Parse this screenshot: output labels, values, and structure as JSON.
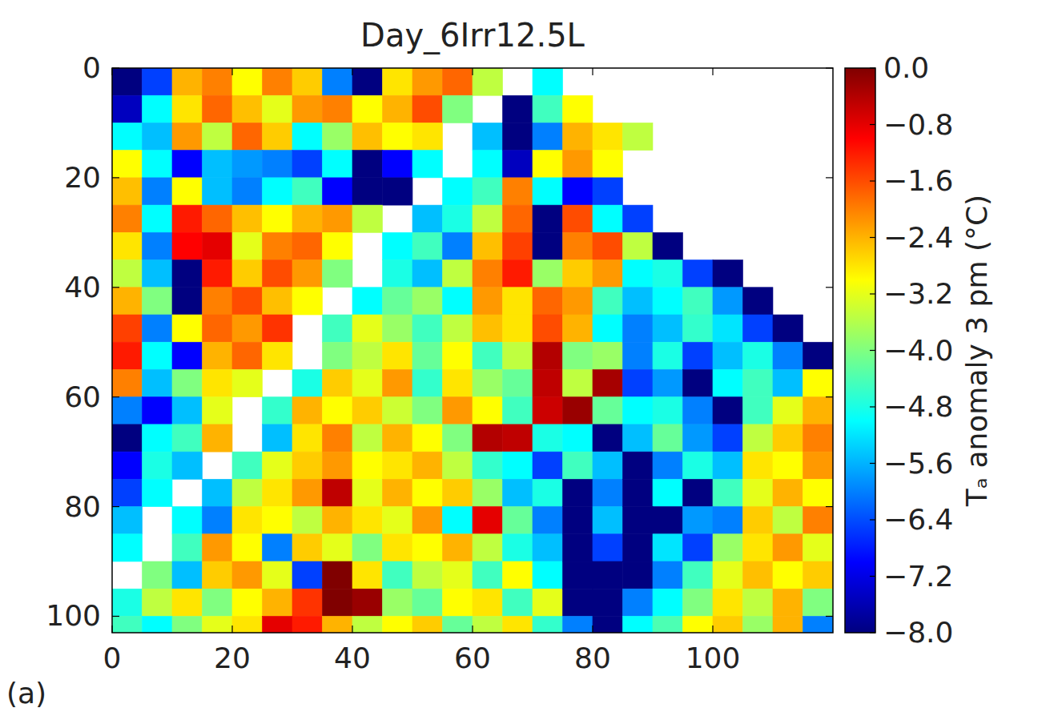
{
  "chart_data": {
    "type": "heatmap",
    "title": "Day_6Irr12.5L",
    "panel_label": "(a)",
    "x": [
      2.5,
      7.5,
      12.5,
      17.5,
      22.5,
      27.5,
      32.5,
      37.5,
      42.5,
      47.5,
      52.5,
      57.5,
      62.5,
      67.5,
      72.5,
      77.5,
      82.5,
      87.5,
      92.5,
      97.5,
      102.5,
      107.5,
      112.5,
      117.5
    ],
    "y": [
      2.5,
      7.5,
      12.5,
      17.5,
      22.5,
      27.5,
      32.5,
      37.5,
      42.5,
      47.5,
      52.5,
      57.5,
      62.5,
      67.5,
      72.5,
      77.5,
      82.5,
      87.5,
      92.5,
      97.5,
      102.5
    ],
    "values": [
      [
        -8,
        -6.5,
        -2.4,
        -2,
        -3,
        -2,
        -2.6,
        -6,
        -8,
        -2.8,
        -2.2,
        -1.8,
        -3.5,
        null,
        -5,
        null,
        null,
        null,
        null,
        null,
        null,
        null,
        null,
        null
      ],
      [
        -7.5,
        -5,
        -2.8,
        -1.8,
        -2.5,
        -3.2,
        -2.2,
        -2,
        -3,
        -2.4,
        -1.6,
        -4,
        null,
        -8,
        -4.5,
        -3,
        null,
        null,
        null,
        null,
        null,
        null,
        null,
        null
      ],
      [
        -5,
        -5.5,
        -2.2,
        -3.5,
        -1.8,
        -2.6,
        -5,
        -3.8,
        -2.5,
        -3,
        -2.8,
        null,
        -5.5,
        -8,
        -6,
        -2.4,
        -2.8,
        -3.5,
        null,
        null,
        null,
        null,
        null,
        null
      ],
      [
        -3,
        -5,
        -7,
        -5.5,
        -5.8,
        -6,
        -6.5,
        -5,
        -8,
        -7,
        -5,
        null,
        -5,
        -7.5,
        -3,
        -2.2,
        -3,
        null,
        null,
        null,
        null,
        null,
        null,
        null
      ],
      [
        -2.5,
        -6,
        -3,
        -5.5,
        -6,
        -5,
        -4.5,
        -7,
        -8,
        -8,
        null,
        -5,
        -4.5,
        -2,
        -5,
        -7,
        -6.5,
        null,
        null,
        null,
        null,
        null,
        null,
        null
      ],
      [
        -2,
        -5,
        -1.2,
        -1.8,
        -2.5,
        -3,
        -2.4,
        -2.2,
        -3.5,
        null,
        -5.5,
        -4.8,
        -3.5,
        -1.8,
        -8,
        -1.6,
        -5,
        -6.5,
        null,
        null,
        null,
        null,
        null,
        null
      ],
      [
        -2.8,
        -6,
        -1,
        -0.8,
        -3.2,
        -2,
        -1.8,
        -3,
        null,
        -5,
        -4.5,
        -6,
        -2.5,
        -1.5,
        -8,
        -2,
        -1.6,
        -3.5,
        -8,
        null,
        null,
        null,
        null,
        null
      ],
      [
        -3.5,
        -5.5,
        -8,
        -1.2,
        -2.6,
        -1.6,
        -2.2,
        -4,
        null,
        -4.8,
        -5.5,
        -3.5,
        -2,
        -1.2,
        -3.8,
        -2.6,
        -2.2,
        -5,
        -4.8,
        -6.5,
        -8,
        null,
        null,
        null
      ],
      [
        -2.4,
        -4,
        -8,
        -2,
        -1.6,
        -2.5,
        -3,
        null,
        -5,
        -4.2,
        -3.8,
        -5,
        -2.2,
        -2.8,
        -1.8,
        -2.2,
        -4.5,
        -5.5,
        -5,
        -4.5,
        -5.8,
        -8,
        null,
        null
      ],
      [
        -1.5,
        -6,
        -3,
        -1.8,
        -2.2,
        -1.4,
        null,
        -4.5,
        -3.2,
        -3.8,
        -4.5,
        -3.5,
        -2.5,
        -2.8,
        -1.6,
        -2.4,
        -5,
        -6,
        -5.5,
        -4.6,
        -5.2,
        -6.5,
        -8,
        null
      ],
      [
        -1.2,
        -5,
        -7,
        -2.4,
        -1.8,
        -2.8,
        null,
        -4,
        -3.5,
        -2.8,
        -4.2,
        -3,
        -4.5,
        -3.5,
        -0.4,
        -4,
        -3.8,
        -6,
        -4.8,
        -6.5,
        -5.5,
        -4.8,
        -6,
        -8
      ],
      [
        -2,
        -5.5,
        -4,
        -2.8,
        -3.2,
        null,
        -4.8,
        -2.6,
        -3.2,
        -2.2,
        -4.6,
        -2.8,
        -3.8,
        -4.2,
        -0.5,
        -3.5,
        -0.3,
        -6.5,
        -5.8,
        -8,
        -5,
        -4.5,
        -5.5,
        -3
      ],
      [
        -6,
        -7,
        -5.5,
        -3.2,
        null,
        -4.6,
        -2.4,
        -3,
        -2.6,
        -3.4,
        -4,
        -2.2,
        -3,
        -4.5,
        -0.6,
        -0.2,
        -4.2,
        -5,
        -4.8,
        -6,
        -8,
        -4.5,
        -3.2,
        -2.4
      ],
      [
        -8,
        -5,
        -4.5,
        -2.4,
        null,
        -5.5,
        -2.8,
        -2,
        -3.5,
        -2.4,
        -3,
        -4,
        -0.4,
        -0.5,
        -4.8,
        -5,
        -8,
        -5.5,
        -4.2,
        -5.8,
        -6.5,
        -3.5,
        -2.6,
        -2
      ],
      [
        -7,
        -4.8,
        -5.5,
        null,
        -4.5,
        -3.2,
        -2.6,
        -2.2,
        -3,
        -2.8,
        -2.4,
        -3.5,
        -4.6,
        -5,
        -6.5,
        -4.5,
        -5.5,
        -8,
        -6,
        -4.8,
        -5.5,
        -2.8,
        -3,
        -2.2
      ],
      [
        -6.5,
        -5,
        null,
        -5.5,
        -3.5,
        -2.8,
        -2.2,
        -0.5,
        -3.2,
        -2.4,
        -3,
        -2.6,
        -3.8,
        -5.5,
        -4.8,
        -8,
        -6,
        -8,
        -5,
        -8,
        -4.5,
        -3.2,
        -2.4,
        -3
      ],
      [
        -5.5,
        null,
        -5,
        -6,
        -2.8,
        -3,
        -3.5,
        -2.4,
        -2.8,
        -3.2,
        -2.2,
        -5,
        -0.8,
        -4.2,
        -6,
        -8,
        -5.5,
        -8,
        -8,
        -5.8,
        -6,
        -2.6,
        -3.5,
        -2
      ],
      [
        -5,
        null,
        -4.5,
        -2.2,
        -3,
        -6,
        -2.6,
        -3.2,
        -4,
        -2.8,
        -3,
        -2.4,
        -3.5,
        -4.8,
        -5.5,
        -8,
        -6.5,
        -8,
        -5.2,
        -6.5,
        -3.8,
        -2.8,
        -2.2,
        -3.2
      ],
      [
        null,
        -4,
        -5.5,
        -2.6,
        -2.2,
        -3.2,
        -6.5,
        0,
        -2.8,
        -4.5,
        -3.5,
        -3.2,
        -4.5,
        -3,
        -5,
        -8,
        -8,
        -8,
        -6,
        -4.5,
        -3.2,
        -2.5,
        -3,
        -2.6
      ],
      [
        -4.8,
        -3.5,
        -2.8,
        -4,
        -3,
        -2.4,
        -1.4,
        0,
        -0.2,
        -3.8,
        -4.2,
        -3,
        -2.8,
        -4.5,
        -3.2,
        -8,
        -8,
        -6,
        -5,
        -4,
        -2.8,
        -3.5,
        -2.4,
        -4
      ],
      [
        -4.5,
        -5,
        -4,
        -3.2,
        -2.8,
        -0.8,
        -1.2,
        -2.4,
        -3.5,
        -3,
        -2.6,
        -4.2,
        -3.5,
        -2.8,
        -4.6,
        -6,
        -8,
        -5,
        -4.4,
        -3,
        -2.6,
        -3.8,
        -2.4,
        -6
      ]
    ],
    "xlim": [
      0,
      120
    ],
    "ylim": [
      0,
      103
    ],
    "xticks": [
      0,
      20,
      40,
      60,
      80,
      100
    ],
    "yticks": [
      0,
      20,
      40,
      60,
      80,
      100
    ],
    "colorbar": {
      "label": "Tₐ anomaly 3 pm (°C)",
      "range": [
        -8,
        0
      ],
      "ticks": [
        {
          "value": 0,
          "label": "0.0"
        },
        {
          "value": -0.8,
          "label": "−0.8"
        },
        {
          "value": -1.6,
          "label": "−1.6"
        },
        {
          "value": -2.4,
          "label": "−2.4"
        },
        {
          "value": -3.2,
          "label": "−3.2"
        },
        {
          "value": -4.0,
          "label": "−4.0"
        },
        {
          "value": -4.8,
          "label": "−4.8"
        },
        {
          "value": -5.6,
          "label": "−5.6"
        },
        {
          "value": -6.4,
          "label": "−6.4"
        },
        {
          "value": -7.2,
          "label": "−7.2"
        },
        {
          "value": -8.0,
          "label": "−8.0"
        }
      ]
    }
  }
}
